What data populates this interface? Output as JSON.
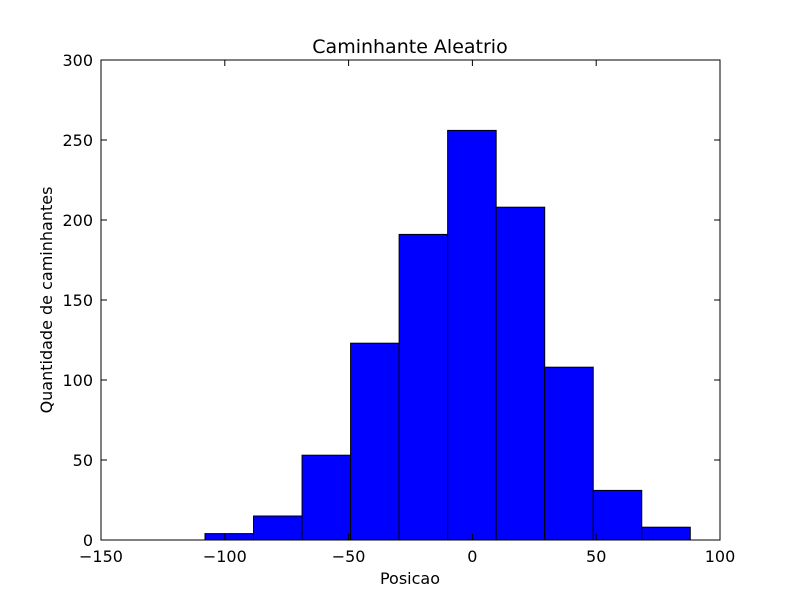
{
  "chart_data": {
    "type": "bar",
    "title": "Caminhante Aleatrio",
    "xlabel": "Posicao",
    "ylabel": "Quantidade de caminhantes",
    "xlim": [
      -150,
      100
    ],
    "ylim": [
      0,
      300
    ],
    "xticks": [
      -150,
      -100,
      -50,
      0,
      50,
      100
    ],
    "xtick_labels": [
      "−150",
      "−100",
      "−50",
      "0",
      "50",
      "100"
    ],
    "yticks": [
      0,
      50,
      100,
      150,
      200,
      250,
      300
    ],
    "ytick_labels": [
      "0",
      "50",
      "100",
      "150",
      "200",
      "250",
      "300"
    ],
    "bin_edges": [
      -108,
      -88.4,
      -68.8,
      -49.2,
      -29.6,
      -10,
      9.6,
      29.2,
      48.8,
      68.4,
      88
    ],
    "values": [
      4,
      15,
      53,
      123,
      191,
      256,
      208,
      108,
      31,
      8
    ],
    "bar_color": "#0000ff",
    "edge_color": "#000000",
    "grid": false
  }
}
